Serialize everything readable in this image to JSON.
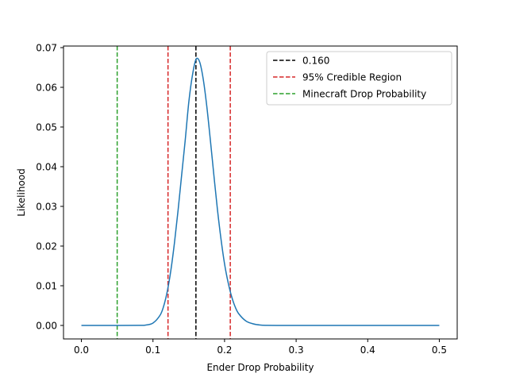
{
  "chart_data": {
    "type": "line",
    "title": "",
    "xlabel": "Ender Drop Probability",
    "ylabel": "Likelihood",
    "xlim": [
      -0.025,
      0.525
    ],
    "ylim": [
      -0.0034,
      0.0704
    ],
    "xticks": [
      0.0,
      0.1,
      0.2,
      0.3,
      0.4,
      0.5
    ],
    "xtick_labels": [
      "0.0",
      "0.1",
      "0.2",
      "0.3",
      "0.4",
      "0.5"
    ],
    "yticks": [
      0.0,
      0.01,
      0.02,
      0.03,
      0.04,
      0.05,
      0.06,
      0.07
    ],
    "ytick_labels": [
      "0.00",
      "0.01",
      "0.02",
      "0.03",
      "0.04",
      "0.05",
      "0.06",
      "0.07"
    ],
    "grid": false,
    "legend_position": "top-right",
    "series": [
      {
        "kind": "curve",
        "color": "#1f77b4",
        "x": [
          0.0,
          0.04,
          0.08,
          0.09,
          0.1,
          0.11,
          0.115,
          0.12,
          0.125,
          0.13,
          0.135,
          0.14,
          0.145,
          0.15,
          0.155,
          0.16,
          0.165,
          0.17,
          0.175,
          0.18,
          0.185,
          0.19,
          0.195,
          0.2,
          0.205,
          0.21,
          0.215,
          0.22,
          0.23,
          0.24,
          0.25,
          0.26,
          0.28,
          0.3,
          0.4,
          0.5
        ],
        "y": [
          0.0,
          0.0,
          2e-05,
          0.0001,
          0.0006,
          0.0026,
          0.0049,
          0.0086,
          0.0139,
          0.0208,
          0.0289,
          0.0378,
          0.0466,
          0.0562,
          0.0629,
          0.067,
          0.0665,
          0.0623,
          0.0555,
          0.047,
          0.038,
          0.0293,
          0.0218,
          0.0155,
          0.0108,
          0.0072,
          0.0046,
          0.0029,
          0.0011,
          0.0004,
          0.0001,
          3e-05,
          0.0,
          0.0,
          0.0,
          0.0
        ]
      }
    ],
    "vlines": [
      {
        "name": "0.160",
        "x": 0.16,
        "color": "#000000",
        "in_legend": true
      },
      {
        "name": "95% Credible Region",
        "x": 0.121,
        "color": "#d62728",
        "in_legend": true
      },
      {
        "name": "",
        "x": 0.208,
        "color": "#d62728",
        "in_legend": false
      },
      {
        "name": "Minecraft Drop Probability",
        "x": 0.05,
        "color": "#2ca02c",
        "in_legend": true
      }
    ]
  }
}
